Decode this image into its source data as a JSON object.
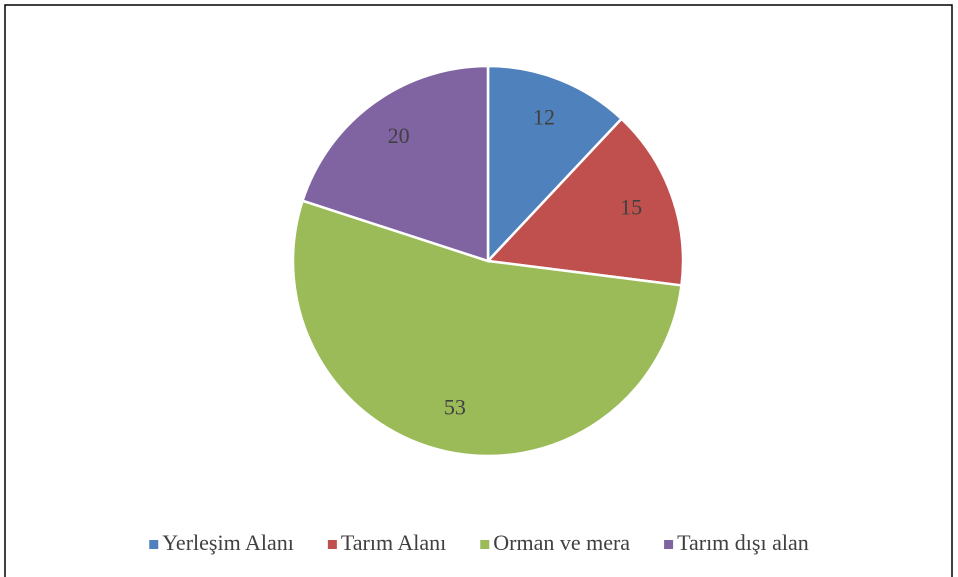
{
  "chart_data": {
    "type": "pie",
    "categories": [
      "Yerleşim Alanı",
      "Tarım Alanı",
      "Orman ve mera",
      "Tarım dışı alan"
    ],
    "values": [
      12,
      15,
      53,
      20
    ],
    "colors": [
      "#4f81bd",
      "#c0504d",
      "#9bbb59",
      "#8064a2"
    ],
    "legend": "bottom"
  }
}
